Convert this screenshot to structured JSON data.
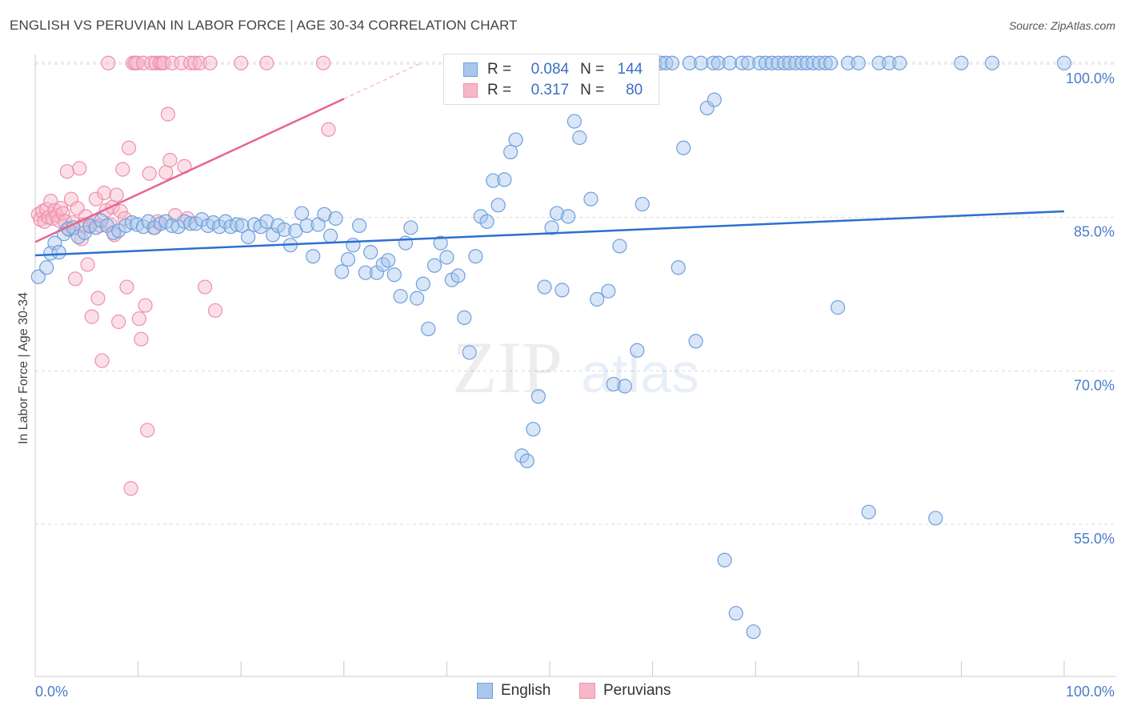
{
  "title": "ENGLISH VS PERUVIAN IN LABOR FORCE | AGE 30-34 CORRELATION CHART",
  "source": "Source: ZipAtlas.com",
  "watermark": {
    "zip": "ZIP",
    "atlas": "atlas"
  },
  "legend_top": {
    "english": {
      "r_label": "R =",
      "r_value": "0.084",
      "n_label": "N =",
      "n_value": "144"
    },
    "peruvian": {
      "r_label": "R =",
      "r_value": "0.317",
      "n_label": "N =",
      "n_value": "80"
    }
  },
  "legend_bottom": {
    "english": "English",
    "peruvian": "Peruvians"
  },
  "colors": {
    "english_fill": "#a9c7ee",
    "english_stroke": "#6f9fdc",
    "english_line": "#2d6fd0",
    "peruvian_fill": "#f6b8c9",
    "peruvian_stroke": "#ee8fab",
    "peruvian_line": "#e8648f",
    "tick_label": "#4a7cc9",
    "grid": "#d9d9d9"
  },
  "chart_data": {
    "type": "scatter",
    "title": "ENGLISH VS PERUVIAN IN LABOR FORCE | AGE 30-34 CORRELATION CHART",
    "xlabel": "",
    "ylabel": "In Labor Force | Age 30-34",
    "xlim": [
      0,
      100
    ],
    "ylim": [
      40,
      102
    ],
    "x_tick_labels": [
      "0.0%",
      "100.0%"
    ],
    "y_ticks": [
      55,
      70,
      85,
      100
    ],
    "y_tick_labels": [
      "55.0%",
      "70.0%",
      "85.0%",
      "100.0%"
    ],
    "grid": true,
    "legend": "top-center",
    "series": [
      {
        "name": "English",
        "trend": {
          "x": [
            0,
            100
          ],
          "y": [
            81.3,
            85.6
          ]
        },
        "points": [
          [
            0.3,
            79.2
          ],
          [
            1.1,
            80.1
          ],
          [
            1.5,
            81.5
          ],
          [
            1.9,
            82.5
          ],
          [
            2.3,
            81.6
          ],
          [
            2.8,
            83.4
          ],
          [
            3.2,
            83.9
          ],
          [
            3.7,
            84.0
          ],
          [
            4.2,
            83.1
          ],
          [
            4.8,
            83.5
          ],
          [
            5.3,
            84.2
          ],
          [
            5.9,
            84.0
          ],
          [
            6.4,
            84.7
          ],
          [
            7.0,
            84.2
          ],
          [
            7.6,
            83.5
          ],
          [
            8.1,
            83.7
          ],
          [
            8.8,
            84.2
          ],
          [
            9.4,
            84.5
          ],
          [
            9.9,
            84.3
          ],
          [
            10.5,
            84.1
          ],
          [
            11.0,
            84.6
          ],
          [
            11.6,
            84.0
          ],
          [
            12.2,
            84.4
          ],
          [
            12.7,
            84.6
          ],
          [
            13.3,
            84.2
          ],
          [
            13.9,
            84.1
          ],
          [
            14.5,
            84.6
          ],
          [
            15.1,
            84.4
          ],
          [
            15.6,
            84.4
          ],
          [
            16.2,
            84.8
          ],
          [
            16.8,
            84.2
          ],
          [
            17.3,
            84.5
          ],
          [
            17.9,
            84.1
          ],
          [
            18.5,
            84.6
          ],
          [
            19.0,
            84.1
          ],
          [
            19.6,
            84.3
          ],
          [
            20.1,
            84.2
          ],
          [
            20.7,
            83.1
          ],
          [
            21.3,
            84.3
          ],
          [
            21.9,
            84.1
          ],
          [
            22.5,
            84.6
          ],
          [
            23.1,
            83.3
          ],
          [
            23.6,
            84.2
          ],
          [
            24.2,
            83.8
          ],
          [
            24.8,
            82.3
          ],
          [
            25.3,
            83.7
          ],
          [
            25.9,
            85.4
          ],
          [
            26.4,
            84.2
          ],
          [
            27.0,
            81.2
          ],
          [
            27.5,
            84.3
          ],
          [
            28.1,
            85.3
          ],
          [
            28.7,
            83.2
          ],
          [
            29.2,
            84.9
          ],
          [
            29.8,
            79.7
          ],
          [
            30.4,
            80.9
          ],
          [
            30.9,
            82.3
          ],
          [
            31.5,
            84.2
          ],
          [
            32.1,
            79.6
          ],
          [
            32.6,
            81.6
          ],
          [
            33.2,
            79.6
          ],
          [
            33.8,
            80.4
          ],
          [
            34.3,
            80.8
          ],
          [
            34.9,
            79.4
          ],
          [
            35.5,
            77.3
          ],
          [
            36.0,
            82.5
          ],
          [
            36.5,
            84.0
          ],
          [
            37.1,
            77.1
          ],
          [
            37.7,
            78.5
          ],
          [
            38.2,
            74.1
          ],
          [
            38.8,
            80.3
          ],
          [
            39.4,
            82.5
          ],
          [
            40.0,
            81.1
          ],
          [
            40.5,
            78.9
          ],
          [
            41.1,
            79.3
          ],
          [
            41.7,
            75.2
          ],
          [
            42.2,
            71.8
          ],
          [
            42.8,
            81.2
          ],
          [
            43.3,
            85.1
          ],
          [
            43.9,
            84.6
          ],
          [
            44.5,
            88.6
          ],
          [
            45.0,
            86.2
          ],
          [
            45.6,
            88.7
          ],
          [
            46.2,
            91.4
          ],
          [
            46.7,
            92.6
          ],
          [
            47.3,
            61.7
          ],
          [
            47.8,
            61.2
          ],
          [
            48.4,
            64.3
          ],
          [
            48.9,
            67.5
          ],
          [
            49.5,
            78.2
          ],
          [
            50.2,
            84.0
          ],
          [
            50.7,
            85.4
          ],
          [
            51.2,
            77.9
          ],
          [
            51.8,
            85.1
          ],
          [
            52.4,
            94.4
          ],
          [
            52.9,
            92.8
          ],
          [
            53.5,
            100.1
          ],
          [
            54.0,
            86.8
          ],
          [
            54.6,
            77.0
          ],
          [
            55.1,
            100.1
          ],
          [
            55.7,
            77.8
          ],
          [
            56.2,
            68.7
          ],
          [
            56.8,
            82.2
          ],
          [
            57.3,
            68.5
          ],
          [
            57.9,
            100.1
          ],
          [
            58.5,
            72.0
          ],
          [
            59.0,
            86.3
          ],
          [
            59.6,
            100.1
          ],
          [
            60.2,
            100.1
          ],
          [
            60.8,
            100.1
          ],
          [
            61.3,
            100.1
          ],
          [
            61.9,
            100.1
          ],
          [
            62.5,
            80.1
          ],
          [
            63.0,
            91.8
          ],
          [
            63.6,
            100.1
          ],
          [
            64.2,
            72.9
          ],
          [
            64.7,
            100.1
          ],
          [
            65.3,
            95.7
          ],
          [
            65.9,
            100.1
          ],
          [
            66.4,
            100.1
          ],
          [
            67.0,
            51.5
          ],
          [
            67.5,
            100.1
          ],
          [
            68.1,
            46.3
          ],
          [
            68.7,
            100.1
          ],
          [
            69.3,
            100.1
          ],
          [
            69.8,
            44.5
          ],
          [
            70.4,
            100.1
          ],
          [
            71.0,
            100.1
          ],
          [
            71.6,
            100.1
          ],
          [
            72.2,
            100.1
          ],
          [
            72.8,
            100.1
          ],
          [
            73.3,
            100.1
          ],
          [
            73.9,
            100.1
          ],
          [
            74.5,
            100.1
          ],
          [
            75.0,
            100.1
          ],
          [
            75.6,
            100.1
          ],
          [
            76.2,
            100.1
          ],
          [
            76.8,
            100.1
          ],
          [
            77.3,
            100.1
          ],
          [
            78.0,
            76.2
          ],
          [
            79.0,
            100.1
          ],
          [
            80.0,
            100.1
          ],
          [
            81.0,
            56.2
          ],
          [
            82.0,
            100.1
          ],
          [
            83.0,
            100.1
          ],
          [
            84.0,
            100.1
          ],
          [
            87.5,
            55.6
          ],
          [
            90.0,
            100.1
          ],
          [
            93.0,
            100.1
          ],
          [
            100.0,
            100.1
          ],
          [
            66.0,
            96.5
          ]
        ]
      },
      {
        "name": "Peruvians",
        "trend": {
          "x": [
            0,
            30
          ],
          "y": [
            82.6,
            96.6
          ]
        },
        "trend_dashed": {
          "x": [
            30,
            37.5
          ],
          "y": [
            96.6,
            100.1
          ]
        },
        "points": [
          [
            0.3,
            85.3
          ],
          [
            0.5,
            84.8
          ],
          [
            0.7,
            85.6
          ],
          [
            0.9,
            84.6
          ],
          [
            1.1,
            85.8
          ],
          [
            1.3,
            85.0
          ],
          [
            1.5,
            86.6
          ],
          [
            1.7,
            84.9
          ],
          [
            1.9,
            85.7
          ],
          [
            2.1,
            85.2
          ],
          [
            2.3,
            84.7
          ],
          [
            2.5,
            85.9
          ],
          [
            2.7,
            85.4
          ],
          [
            2.9,
            84.6
          ],
          [
            3.1,
            89.5
          ],
          [
            3.3,
            83.8
          ],
          [
            3.5,
            86.8
          ],
          [
            3.7,
            84.5
          ],
          [
            3.9,
            79.0
          ],
          [
            4.1,
            85.9
          ],
          [
            4.3,
            89.8
          ],
          [
            4.5,
            82.9
          ],
          [
            4.7,
            84.3
          ],
          [
            4.9,
            85.1
          ],
          [
            5.1,
            80.4
          ],
          [
            5.3,
            84.1
          ],
          [
            5.5,
            75.3
          ],
          [
            5.7,
            84.6
          ],
          [
            5.9,
            86.8
          ],
          [
            6.1,
            77.1
          ],
          [
            6.3,
            84.2
          ],
          [
            6.5,
            71.0
          ],
          [
            6.7,
            87.4
          ],
          [
            6.9,
            85.7
          ],
          [
            7.1,
            100.1
          ],
          [
            7.3,
            84.3
          ],
          [
            7.5,
            86.0
          ],
          [
            7.7,
            83.3
          ],
          [
            7.9,
            87.2
          ],
          [
            8.1,
            74.8
          ],
          [
            8.3,
            85.6
          ],
          [
            8.5,
            89.7
          ],
          [
            8.7,
            84.9
          ],
          [
            8.9,
            78.2
          ],
          [
            9.1,
            91.8
          ],
          [
            9.3,
            58.5
          ],
          [
            9.5,
            100.1
          ],
          [
            9.7,
            100.1
          ],
          [
            9.9,
            100.1
          ],
          [
            10.1,
            75.1
          ],
          [
            10.3,
            73.1
          ],
          [
            10.5,
            100.1
          ],
          [
            10.7,
            76.4
          ],
          [
            10.9,
            64.2
          ],
          [
            11.1,
            89.3
          ],
          [
            11.3,
            100.1
          ],
          [
            11.5,
            84.0
          ],
          [
            11.7,
            100.1
          ],
          [
            11.9,
            84.6
          ],
          [
            12.1,
            100.1
          ],
          [
            12.3,
            100.1
          ],
          [
            12.5,
            100.1
          ],
          [
            12.7,
            89.4
          ],
          [
            12.9,
            95.1
          ],
          [
            13.1,
            90.6
          ],
          [
            13.3,
            100.1
          ],
          [
            13.6,
            85.2
          ],
          [
            14.2,
            100.1
          ],
          [
            14.8,
            84.9
          ],
          [
            14.5,
            90.0
          ],
          [
            15.1,
            100.1
          ],
          [
            15.5,
            100.1
          ],
          [
            16.0,
            100.1
          ],
          [
            16.5,
            78.2
          ],
          [
            17.0,
            100.1
          ],
          [
            17.5,
            75.9
          ],
          [
            20.0,
            100.1
          ],
          [
            22.5,
            100.1
          ],
          [
            28.0,
            100.1
          ],
          [
            28.5,
            93.6
          ]
        ]
      }
    ]
  }
}
